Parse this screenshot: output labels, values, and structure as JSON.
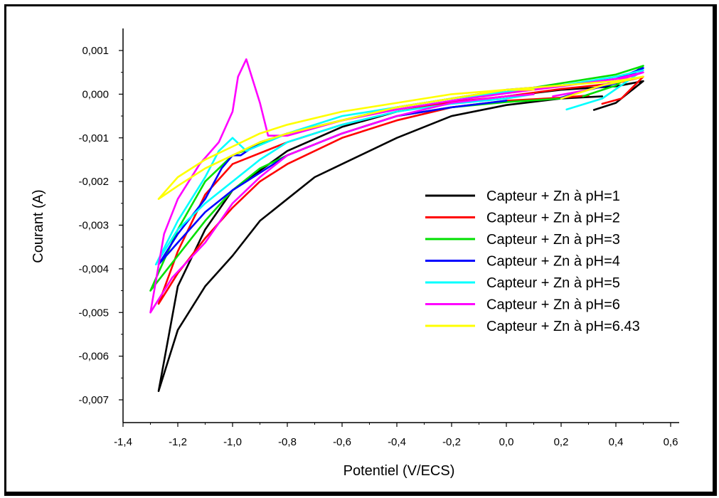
{
  "chart_data": {
    "type": "line",
    "title": "",
    "xlabel": "Potentiel (V/ECS)",
    "ylabel": "Courant (A)",
    "xlim": [
      -1.4,
      0.6
    ],
    "ylim": [
      -0.007,
      0.001
    ],
    "x_ticks": [
      "-1,4",
      "-1,2",
      "-1,0",
      "-0,8",
      "-0,6",
      "-0,4",
      "-0,2",
      "0,0",
      "0,2",
      "0,4",
      "0,6"
    ],
    "y_ticks": [
      "0,001",
      "0,000",
      "-0,001",
      "-0,002",
      "-0,003",
      "-0,004",
      "-0,005",
      "-0,006",
      "-0,007"
    ],
    "grid": false,
    "legend_position": "right",
    "series": [
      {
        "name": "Capteur + Zn à pH=1",
        "color": "#000000",
        "x": [
          0.32,
          0.4,
          0.5,
          0.4,
          0.2,
          0.0,
          -0.2,
          -0.4,
          -0.6,
          -0.8,
          -1.0,
          -1.1,
          -1.2,
          -1.27,
          -1.2,
          -1.1,
          -1.0,
          -0.9,
          -0.8,
          -0.7,
          -0.6,
          -0.4,
          -0.2,
          0.0,
          0.2,
          0.35
        ],
        "y": [
          -0.00036,
          -0.0002,
          0.0003,
          0.00018,
          0.0001,
          -5e-05,
          -0.0002,
          -0.0004,
          -0.00075,
          -0.0013,
          -0.0022,
          -0.0031,
          -0.0044,
          -0.0068,
          -0.0054,
          -0.0044,
          -0.0037,
          -0.0029,
          -0.0024,
          -0.0019,
          -0.0016,
          -0.001,
          -0.0005,
          -0.00025,
          -0.0001,
          -5e-05
        ]
      },
      {
        "name": "Capteur + Zn à pH=2",
        "color": "#ff0000",
        "x": [
          0.35,
          0.42,
          0.5,
          0.4,
          0.2,
          0.0,
          -0.2,
          -0.4,
          -0.6,
          -0.8,
          -1.0,
          -1.1,
          -1.2,
          -1.27,
          -1.2,
          -1.1,
          -1.0,
          -0.9,
          -0.8,
          -0.6,
          -0.4,
          -0.2,
          0.0,
          0.2,
          0.3
        ],
        "y": [
          -0.00022,
          -0.0001,
          0.0004,
          0.00025,
          0.00012,
          -5e-05,
          -0.00018,
          -0.0004,
          -0.0007,
          -0.0011,
          -0.0016,
          -0.0023,
          -0.0036,
          -0.0048,
          -0.0041,
          -0.0033,
          -0.0026,
          -0.002,
          -0.0016,
          -0.001,
          -0.0006,
          -0.0003,
          -0.00015,
          -8e-05,
          -3e-05
        ]
      },
      {
        "name": "Capteur + Zn à pH=3",
        "color": "#00e000",
        "x": [
          0.28,
          0.4,
          0.5,
          0.4,
          0.2,
          0.0,
          -0.2,
          -0.4,
          -0.6,
          -0.8,
          -1.0,
          -1.1,
          -1.2,
          -1.3,
          -1.2,
          -1.1,
          -1.0,
          -0.9,
          -0.8,
          -0.6,
          -0.4,
          -0.2,
          0.0,
          0.2
        ],
        "y": [
          -5e-05,
          0.0002,
          0.00065,
          0.00045,
          0.00025,
          5e-05,
          -0.0001,
          -0.0003,
          -0.0006,
          -0.0009,
          -0.0014,
          -0.002,
          -0.0031,
          -0.0045,
          -0.0037,
          -0.0029,
          -0.0022,
          -0.0017,
          -0.0014,
          -0.0009,
          -0.0005,
          -0.0003,
          -0.00018,
          -0.0001
        ]
      },
      {
        "name": "Capteur + Zn à pH=4",
        "color": "#0000ff",
        "x": [
          0.2,
          0.3,
          0.4,
          0.5,
          0.4,
          0.2,
          0.0,
          -0.2,
          -0.4,
          -0.6,
          -0.8,
          -0.9,
          -0.97,
          -1.0,
          -1.04,
          -1.1,
          -1.2,
          -1.27,
          -1.2,
          -1.1,
          -1.0,
          -0.9,
          -0.8,
          -0.6,
          -0.4,
          -0.2,
          0.0
        ],
        "y": [
          -8e-05,
          0.0001,
          0.00025,
          0.0006,
          0.00035,
          0.0002,
          0.0001,
          -0.0001,
          -0.0003,
          -0.0006,
          -0.0009,
          -0.0011,
          -0.0014,
          -0.0014,
          -0.0017,
          -0.0024,
          -0.0032,
          -0.0039,
          -0.0034,
          -0.0027,
          -0.0022,
          -0.0018,
          -0.0014,
          -0.0009,
          -0.0005,
          -0.0003,
          -0.00015
        ]
      },
      {
        "name": "Capteur + Zn à pH=5",
        "color": "#00ffff",
        "x": [
          0.22,
          0.35,
          0.5,
          0.4,
          0.2,
          0.0,
          -0.2,
          -0.4,
          -0.6,
          -0.8,
          -0.95,
          -1.0,
          -1.05,
          -1.1,
          -1.2,
          -1.28,
          -1.2,
          -1.1,
          -1.0,
          -0.9,
          -0.8,
          -0.6,
          -0.4,
          -0.2,
          0.0,
          0.1
        ],
        "y": [
          -0.00035,
          -0.0001,
          0.00055,
          0.0004,
          0.0002,
          5e-05,
          -0.0001,
          -0.0003,
          -0.0005,
          -0.0009,
          -0.0013,
          -0.001,
          -0.0013,
          -0.0019,
          -0.0029,
          -0.0039,
          -0.0031,
          -0.0025,
          -0.002,
          -0.0015,
          -0.0011,
          -0.0007,
          -0.0004,
          -0.00022,
          -0.0001,
          0.0
        ]
      },
      {
        "name": "Capteur + Zn à pH=6",
        "color": "#ff00ff",
        "x": [
          0.17,
          0.3,
          0.5,
          0.4,
          0.2,
          0.0,
          -0.2,
          -0.4,
          -0.6,
          -0.8,
          -0.87,
          -0.9,
          -0.95,
          -0.98,
          -1.0,
          -1.05,
          -1.12,
          -1.2,
          -1.25,
          -1.3,
          -1.22,
          -1.1,
          -1.0,
          -0.9,
          -0.8,
          -0.6,
          -0.4,
          -0.2,
          0.0,
          0.1
        ],
        "y": [
          -5e-05,
          0.0001,
          0.0005,
          0.00035,
          0.00018,
          2e-05,
          -0.00015,
          -0.00035,
          -0.0006,
          -0.00095,
          -0.00095,
          -0.0002,
          0.0008,
          0.0004,
          -0.0004,
          -0.0011,
          -0.0016,
          -0.0024,
          -0.0032,
          -0.005,
          -0.0042,
          -0.0034,
          -0.0025,
          -0.0019,
          -0.0014,
          -0.0009,
          -0.0005,
          -0.0002,
          -5e-05,
          0.0
        ]
      },
      {
        "name": "Capteur + Zn à pH=6.43",
        "color": "#ffff00",
        "x": [
          0.2,
          0.35,
          0.5,
          0.4,
          0.2,
          0.0,
          -0.2,
          -0.4,
          -0.6,
          -0.8,
          -0.9,
          -1.0,
          -1.1,
          -1.2,
          -1.27,
          -1.2,
          -1.1,
          -1.0,
          -0.9,
          -0.8,
          -0.6,
          -0.4,
          -0.2,
          0.0,
          0.1
        ],
        "y": [
          -0.0001,
          0.0002,
          0.0004,
          0.0003,
          0.0002,
          0.0001,
          0.0,
          -0.0002,
          -0.0004,
          -0.0007,
          -0.0009,
          -0.0012,
          -0.0015,
          -0.0019,
          -0.0024,
          -0.0021,
          -0.0017,
          -0.0014,
          -0.0011,
          -0.0009,
          -0.0006,
          -0.0003,
          -0.0001,
          0.0001,
          0.0001
        ]
      }
    ]
  }
}
